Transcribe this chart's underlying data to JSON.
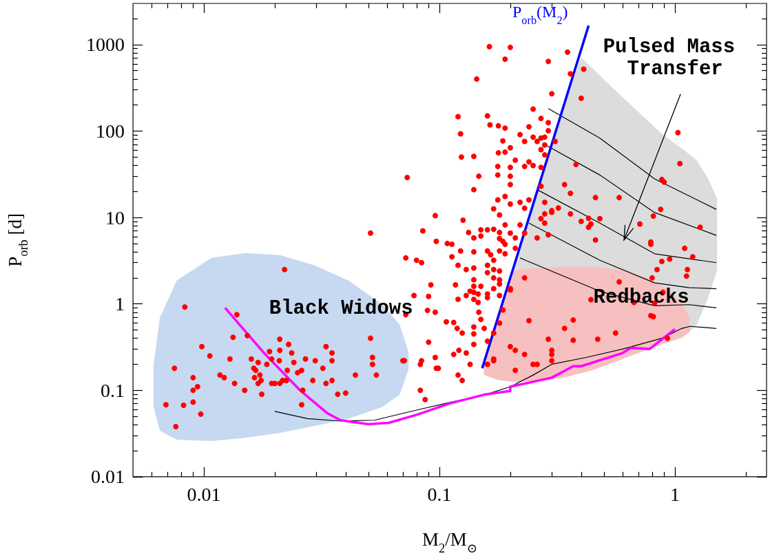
{
  "chart_data": {
    "type": "scatter",
    "xlabel": "M$_{2}$/M$_{⊙}$",
    "ylabel": "P$_{orb}$ [d]",
    "log": "xy",
    "xlim": [
      0.005,
      2.45
    ],
    "ylim": [
      0.01,
      3000
    ],
    "xticks": [
      {
        "value": 0.006,
        "label": null
      },
      {
        "value": 0.007,
        "label": null
      },
      {
        "value": 0.008,
        "label": null
      },
      {
        "value": 0.009,
        "label": null
      },
      0.01,
      {
        "value": 0.02,
        "label": null
      },
      {
        "value": 0.03,
        "label": null
      },
      {
        "value": 0.04,
        "label": null
      },
      {
        "value": 0.05,
        "label": null
      },
      {
        "value": 0.06,
        "label": null
      },
      {
        "value": 0.07,
        "label": null
      },
      {
        "value": 0.08,
        "label": null
      },
      {
        "value": 0.09,
        "label": null
      },
      0.1,
      {
        "value": 0.2,
        "label": null
      },
      {
        "value": 0.3,
        "label": null
      },
      {
        "value": 0.4,
        "label": null
      },
      {
        "value": 0.5,
        "label": null
      },
      {
        "value": 0.6,
        "label": null
      },
      {
        "value": 0.7,
        "label": null
      },
      {
        "value": 0.8,
        "label": null
      },
      {
        "value": 0.9,
        "label": null
      },
      1,
      {
        "value": 2,
        "label": null
      }
    ],
    "yticks": [
      0.01,
      {
        "value": 0.02,
        "label": null
      },
      {
        "value": 0.03,
        "label": null
      },
      {
        "value": 0.04,
        "label": null
      },
      {
        "value": 0.05,
        "label": null
      },
      {
        "value": 0.06,
        "label": null
      },
      {
        "value": 0.07,
        "label": null
      },
      {
        "value": 0.08,
        "label": null
      },
      {
        "value": 0.09,
        "label": null
      },
      0.1,
      {
        "value": 0.2,
        "label": null
      },
      {
        "value": 0.3,
        "label": null
      },
      {
        "value": 0.4,
        "label": null
      },
      {
        "value": 0.5,
        "label": null
      },
      {
        "value": 0.6,
        "label": null
      },
      {
        "value": 0.7,
        "label": null
      },
      {
        "value": 0.8,
        "label": null
      },
      {
        "value": 0.9,
        "label": null
      },
      1,
      {
        "value": 2,
        "label": null
      },
      {
        "value": 3,
        "label": null
      },
      {
        "value": 4,
        "label": null
      },
      {
        "value": 5,
        "label": null
      },
      {
        "value": 6,
        "label": null
      },
      {
        "value": 7,
        "label": null
      },
      {
        "value": 8,
        "label": null
      },
      {
        "value": 9,
        "label": null
      },
      10,
      {
        "value": 20,
        "label": null
      },
      {
        "value": 30,
        "label": null
      },
      {
        "value": 40,
        "label": null
      },
      {
        "value": 50,
        "label": null
      },
      {
        "value": 60,
        "label": null
      },
      {
        "value": 70,
        "label": null
      },
      {
        "value": 80,
        "label": null
      },
      {
        "value": 90,
        "label": null
      },
      100,
      {
        "value": 200,
        "label": null
      },
      {
        "value": 300,
        "label": null
      },
      {
        "value": 400,
        "label": null
      },
      {
        "value": 500,
        "label": null
      },
      {
        "value": 600,
        "label": null
      },
      {
        "value": 700,
        "label": null
      },
      {
        "value": 800,
        "label": null
      },
      {
        "value": 900,
        "label": null
      },
      1000,
      {
        "value": 2000,
        "label": null
      }
    ],
    "series": [
      {
        "type": "area",
        "name": "Black Widows",
        "color": "#c6d9f0",
        "x": [
          0.00614,
          0.00653,
          0.0077,
          0.0108,
          0.015,
          0.021,
          0.0293,
          0.0409,
          0.057,
          0.0675,
          0.0736,
          0.0736,
          0.0675,
          0.057,
          0.0409,
          0.0293,
          0.021,
          0.015,
          0.0108,
          0.0077,
          0.00653,
          0.00614
        ],
        "values": [
          0.192,
          0.684,
          1.85,
          3.37,
          3.83,
          3.62,
          2.76,
          1.85,
          0.98,
          0.57,
          0.276,
          0.175,
          0.0897,
          0.0647,
          0.0475,
          0.039,
          0.0325,
          0.0286,
          0.0262,
          0.0271,
          0.0343,
          0.0647
        ]
      },
      {
        "type": "area",
        "name": "Pulsed Mass Transfer",
        "color": "#dcdcdc",
        "x": [
          0.1554,
          0.1776,
          0.217,
          0.265,
          0.3237,
          0.4007,
          0.5165,
          0.6745,
          0.881,
          1.076,
          1.23,
          1.377,
          1.503,
          1.503,
          1.377,
          1.23,
          1.076,
          0.881,
          0.6745,
          0.5165,
          0.4007,
          0.3237,
          0.265,
          0.217,
          0.1776,
          0.1554
        ],
        "values": [
          0.218,
          0.696,
          4.04,
          23.4,
          134,
          696,
          356,
          179,
          91,
          61,
          45.8,
          28.1,
          16.3,
          2.43,
          1.18,
          0.57,
          0.411,
          0.343,
          0.266,
          0.203,
          0.16,
          0.141,
          0.129,
          0.1265,
          0.1336,
          0.152
        ]
      },
      {
        "type": "area",
        "name": "Redbacks",
        "color": "#f7c0c0",
        "x": [
          0.1554,
          0.1776,
          0.21,
          0.265,
          0.346,
          0.452,
          0.59,
          0.77,
          0.942,
          1.076,
          1.15,
          1.15,
          1.076,
          0.942,
          0.77,
          0.59,
          0.452,
          0.346,
          0.265,
          0.21,
          0.1776,
          0.1554
        ],
        "values": [
          0.23,
          0.748,
          2.43,
          2.57,
          2.66,
          2.66,
          2.43,
          1.95,
          1.41,
          0.98,
          0.684,
          0.475,
          0.427,
          0.376,
          0.302,
          0.23,
          0.175,
          0.144,
          0.129,
          0.1265,
          0.1336,
          0.152
        ]
      },
      {
        "type": "line",
        "color": "#000000",
        "x": [
          0.29,
          0.48,
          0.82,
          1.5
        ],
        "values": [
          182,
          83,
          28,
          12.4
        ]
      },
      {
        "type": "line",
        "color": "#000000",
        "x": [
          0.28,
          0.48,
          0.82,
          1.5
        ],
        "values": [
          70,
          31,
          11.4,
          6.2
        ]
      },
      {
        "type": "line",
        "color": "#000000",
        "x": [
          0.26,
          0.48,
          0.82,
          1.5
        ],
        "values": [
          21,
          8.6,
          3.8,
          3
        ]
      },
      {
        "type": "line",
        "color": "#000000",
        "x": [
          0.24,
          0.48,
          0.82,
          1.15,
          1.5
        ],
        "values": [
          8.6,
          3.2,
          1.75,
          1.54,
          1.5
        ]
      },
      {
        "type": "line",
        "color": "#000000",
        "x": [
          0.22,
          0.48,
          0.82,
          1.15,
          1.5
        ],
        "values": [
          3.4,
          1.4,
          0.95,
          0.98,
          0.9
        ]
      },
      {
        "type": "line",
        "color": "#000000",
        "x": [
          0.02,
          0.0275,
          0.038,
          0.053,
          0.08,
          0.11,
          0.155,
          0.2,
          0.25,
          0.3,
          0.42,
          0.6,
          0.88,
          1.07,
          1.16,
          1.5
        ],
        "values": [
          0.057,
          0.047,
          0.044,
          0.045,
          0.059,
          0.072,
          0.088,
          0.11,
          0.15,
          0.2,
          0.24,
          0.3,
          0.4,
          0.52,
          0.55,
          0.52
        ]
      },
      {
        "type": "line",
        "color": "#ff00ff",
        "x": [
          0.0123,
          0.018,
          0.0256,
          0.0335,
          0.038,
          0.05,
          0.061,
          0.08,
          0.11,
          0.155,
          0.2,
          0.2,
          0.3,
          0.37,
          0.4,
          0.6,
          0.65,
          0.78,
          1.0
        ],
        "values": [
          0.9,
          0.27,
          0.1,
          0.054,
          0.045,
          0.0405,
          0.042,
          0.052,
          0.07,
          0.089,
          0.098,
          0.11,
          0.14,
          0.19,
          0.19,
          0.27,
          0.31,
          0.3,
          0.51
        ]
      },
      {
        "type": "line",
        "name": "P$_{orb}$(M$_{2}$)",
        "color": "#0000ff",
        "x": [
          0.152,
          0.43
        ],
        "values": [
          0.18,
          1660
        ]
      },
      {
        "marker": "circle",
        "color": "#ff0000",
        "x": [
          0.0083,
          0.022,
          0.0138,
          0.0133,
          0.0153,
          0.0098,
          0.0106,
          0.0075,
          0.0129,
          0.0159,
          0.017,
          0.0185,
          0.019,
          0.021,
          0.0229,
          0.021,
          0.0236,
          0.0194,
          0.0209,
          0.0163,
          0.0166,
          0.0226,
          0.0241,
          0.027,
          0.0297,
          0.033,
          0.035,
          0.035,
          0.032,
          0.026,
          0.025,
          0.0117,
          0.0122,
          0.009,
          0.0094,
          0.009,
          0.0135,
          0.0164,
          0.0173,
          0.0175,
          0.017,
          0.0194,
          0.02,
          0.021,
          0.0216,
          0.0224,
          0.0149,
          0.0176,
          0.0263,
          0.029,
          0.033,
          0.035,
          0.037,
          0.04,
          0.044,
          0.051,
          0.052,
          0.052,
          0.054,
          0.07,
          0.0069,
          0.0082,
          0.009,
          0.0097,
          0.0076,
          0.026,
          0.051,
          0.163,
          0.2,
          0.19,
          0.35,
          0.29,
          0.144,
          0.41,
          0.36,
          0.3,
          0.4,
          0.25,
          0.12,
          0.16,
          0.27,
          0.164,
          0.178,
          0.19,
          0.24,
          0.29,
          0.29,
          0.123,
          0.22,
          0.25,
          0.27,
          0.28,
          0.186,
          0.23,
          0.26,
          0.28,
          0.31,
          0.2,
          0.178,
          0.19,
          0.27,
          0.28,
          0.124,
          0.14,
          0.21,
          0.24,
          0.25,
          0.23,
          0.27,
          0.177,
          0.2,
          0.177,
          0.2,
          0.073,
          0.147,
          0.38,
          0.2,
          0.34,
          0.14,
          0.36,
          0.27,
          0.177,
          0.19,
          0.22,
          0.24,
          0.28,
          0.17,
          0.18,
          0.2,
          0.23,
          0.096,
          0.126,
          0.27,
          0.3,
          0.32,
          0.36,
          0.085,
          0.097,
          0.108,
          0.113,
          0.072,
          0.08,
          0.084,
          0.113,
          0.123,
          0.133,
          0.14,
          0.15,
          0.16,
          0.17,
          0.15,
          0.18,
          0.19,
          0.18,
          0.19,
          0.186,
          0.2,
          0.21,
          0.14,
          0.16,
          0.165,
          0.18,
          0.19,
          0.21,
          0.17,
          0.12,
          0.13,
          0.14,
          0.16,
          0.17,
          0.18,
          0.16,
          0.14,
          0.17,
          0.18,
          0.18,
          0.092,
          0.117,
          0.14,
          0.15,
          0.135,
          0.14,
          0.146,
          0.16,
          0.17,
          0.18,
          0.16,
          0.14,
          0.146,
          0.13,
          0.12,
          0.078,
          0.09,
          0.072,
          0.089,
          0.096,
          0.147,
          0.107,
          0.115,
          0.15,
          0.119,
          0.125,
          0.14,
          0.14,
          0.155,
          0.09,
          0.14,
          0.121,
          0.115,
          0.13,
          0.096,
          0.084,
          0.083,
          0.097,
          0.099,
          0.12,
          0.125,
          0.135,
          0.083,
          0.087,
          0.071,
          0.23,
          0.2,
          0.2,
          0.186,
          0.18,
          0.17,
          0.16,
          0.24,
          0.37,
          0.34,
          0.29,
          0.37,
          0.2,
          0.21,
          0.23,
          0.3,
          0.3,
          0.3,
          0.17,
          0.17,
          0.16,
          0.25,
          0.26,
          0.21,
          0.28,
          0.28,
          0.3,
          0.4,
          0.43,
          0.44,
          0.26,
          0.29,
          0.23,
          0.22,
          1.03,
          1.05,
          0.88,
          0.9,
          0.46,
          0.58,
          0.87,
          0.81,
          0.48,
          0.71,
          1.28,
          0.43,
          0.46,
          0.79,
          0.79,
          0.88,
          0.95,
          0.84,
          1.13,
          1.12,
          1.1,
          1.19,
          0.8,
          0.58,
          0.89,
          0.44,
          0.67,
          0.82,
          0.79,
          0.81,
          0.56,
          0.47,
          0.93
        ],
        "values": [
          0.92,
          2.5,
          0.75,
          0.41,
          0.43,
          0.32,
          0.25,
          0.18,
          0.23,
          0.23,
          0.21,
          0.2,
          0.28,
          0.39,
          0.34,
          0.29,
          0.27,
          0.23,
          0.22,
          0.18,
          0.17,
          0.17,
          0.21,
          0.23,
          0.22,
          0.32,
          0.27,
          0.22,
          0.18,
          0.17,
          0.16,
          0.15,
          0.14,
          0.14,
          0.11,
          0.1,
          0.12,
          0.14,
          0.15,
          0.13,
          0.12,
          0.12,
          0.12,
          0.12,
          0.13,
          0.13,
          0.1,
          0.09,
          0.1,
          0.13,
          0.12,
          0.13,
          0.09,
          0.093,
          0.15,
          0.4,
          0.24,
          0.2,
          0.15,
          0.22,
          0.068,
          0.067,
          0.073,
          0.053,
          0.038,
          0.068,
          6.6,
          950,
          930,
          680,
          820,
          640,
          400,
          520,
          460,
          270,
          240,
          180,
          147,
          150,
          140,
          118,
          115,
          108,
          112,
          125,
          101,
          93,
          91,
          85,
          83,
          85,
          77,
          76,
          76,
          69,
          76,
          64,
          56,
          57,
          61,
          53,
          50,
          51,
          46,
          44,
          40,
          39,
          38,
          39,
          38,
          31,
          30,
          29,
          30,
          41,
          24,
          24,
          21,
          19,
          23,
          16,
          17.5,
          15,
          16,
          15,
          12.6,
          10.7,
          14.3,
          12.8,
          10.5,
          9.3,
          9.7,
          11.5,
          12.9,
          11,
          7,
          5.3,
          5,
          4.9,
          3.4,
          3.2,
          3,
          3.5,
          4.1,
          6.7,
          5.8,
          7.2,
          7.2,
          7.3,
          6.1,
          6.7,
          8.2,
          5.7,
          4.9,
          5.3,
          6.6,
          5.8,
          4,
          4.1,
          3.7,
          4.1,
          3.8,
          4.4,
          3.2,
          2.8,
          2.5,
          2.6,
          2.8,
          2.5,
          2.4,
          2.3,
          1.9,
          2,
          1.9,
          1.7,
          1.66,
          1.66,
          1.6,
          1.6,
          1.4,
          1.36,
          1.3,
          1.3,
          1.5,
          1.25,
          1.18,
          1.13,
          1.04,
          1.25,
          1.13,
          1.25,
          1.22,
          0.75,
          0.84,
          0.8,
          0.8,
          0.62,
          0.61,
          0.66,
          0.52,
          0.46,
          0.54,
          0.45,
          0.52,
          0.36,
          0.34,
          0.29,
          0.26,
          0.27,
          0.24,
          0.22,
          0.2,
          0.18,
          0.18,
          0.15,
          0.13,
          0.2,
          0.1,
          0.078,
          0.22,
          2,
          1.45,
          1.5,
          0.85,
          0.6,
          0.46,
          0.37,
          0.64,
          0.65,
          0.52,
          0.39,
          0.38,
          0.32,
          0.29,
          0.26,
          0.29,
          0.26,
          0.22,
          0.23,
          0.22,
          0.2,
          0.2,
          0.2,
          0.17,
          8.6,
          11,
          12,
          9,
          9.8,
          8.4,
          5.8,
          6.3,
          6.6,
          8.2,
          96,
          42,
          27.5,
          25.7,
          17,
          17,
          12.4,
          10.4,
          9.7,
          8.4,
          7.7,
          7.7,
          5.5,
          5.2,
          4.9,
          3.1,
          3.3,
          2.5,
          2.5,
          2.1,
          4.4,
          3.5,
          2,
          1.8,
          1.36,
          1.12,
          1.04,
          1.02,
          0.73,
          0.71,
          0.46,
          0.39,
          0.4
        ]
      }
    ]
  }
}
